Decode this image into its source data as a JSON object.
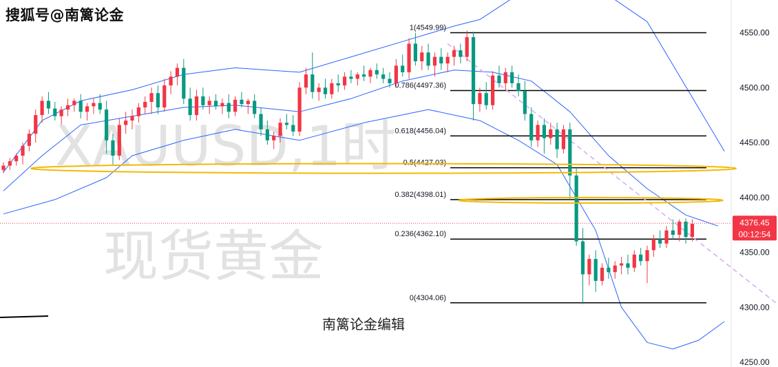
{
  "overlay": {
    "title": "搜狐号@南篱论金",
    "editor_note": "南篱论金编辑"
  },
  "watermark": {
    "line1": "XAUUSD,1时",
    "line2": "现货黄金"
  },
  "price_tag": {
    "value": "4376.45",
    "countdown": "00:12:54",
    "color": "#f23645"
  },
  "colors": {
    "up": "#f23645",
    "down": "#089981",
    "bands": "#2962ff",
    "fib": "#000000",
    "ellipse": "#f5b800",
    "trendline": "#d7a9f2"
  },
  "chart_data": {
    "type": "candlestick",
    "symbol": "XAUUSD",
    "interval": "1h",
    "y_axis": {
      "min": 4250,
      "max": 4575,
      "ticks": [
        "4550.00",
        "4500.00",
        "4450.00",
        "4400.00",
        "4350.00",
        "4300.00",
        "4250.00"
      ],
      "tick_values": [
        4550,
        4500,
        4450,
        4400,
        4350,
        4300,
        4250
      ]
    },
    "last_price": 4376.45,
    "fib_levels": [
      {
        "label": "1(4549.99)",
        "value": 4549.99
      },
      {
        "label": "0.786(4497.36)",
        "value": 4497.36
      },
      {
        "label": "0.618(4456.04)",
        "value": 4456.04
      },
      {
        "label": "0.5(4427.03)",
        "value": 4427.03
      },
      {
        "label": "0.382(4398.01)",
        "value": 4398.01
      },
      {
        "label": "0.236(4362.10)",
        "value": 4362.1
      },
      {
        "label": "0(4304.06)",
        "value": 4304.06
      }
    ],
    "highlight_ellipses": [
      4427.03,
      4398.01
    ],
    "candles": [
      [
        4425,
        4432,
        4422,
        4429
      ],
      [
        4429,
        4436,
        4425,
        4433
      ],
      [
        4433,
        4440,
        4429,
        4438
      ],
      [
        4438,
        4450,
        4430,
        4447
      ],
      [
        4447,
        4462,
        4442,
        4458
      ],
      [
        4458,
        4480,
        4450,
        4475
      ],
      [
        4475,
        4492,
        4468,
        4488
      ],
      [
        4488,
        4496,
        4476,
        4481
      ],
      [
        4481,
        4487,
        4470,
        4474
      ],
      [
        4474,
        4483,
        4466,
        4480
      ],
      [
        4480,
        4490,
        4474,
        4484
      ],
      [
        4484,
        4490,
        4478,
        4488
      ],
      [
        4488,
        4494,
        4472,
        4478
      ],
      [
        4478,
        4486,
        4470,
        4483
      ],
      [
        4483,
        4490,
        4476,
        4486
      ],
      [
        4486,
        4494,
        4476,
        4480
      ],
      [
        4480,
        4488,
        4440,
        4452
      ],
      [
        4452,
        4458,
        4430,
        4438
      ],
      [
        4438,
        4472,
        4434,
        4466
      ],
      [
        4466,
        4478,
        4458,
        4470
      ],
      [
        4470,
        4480,
        4462,
        4474
      ],
      [
        4474,
        4486,
        4468,
        4482
      ],
      [
        4482,
        4492,
        4476,
        4487
      ],
      [
        4487,
        4500,
        4476,
        4495
      ],
      [
        4495,
        4502,
        4476,
        4482
      ],
      [
        4482,
        4508,
        4478,
        4502
      ],
      [
        4502,
        4515,
        4494,
        4510
      ],
      [
        4510,
        4522,
        4502,
        4518
      ],
      [
        4518,
        4526,
        4485,
        4490
      ],
      [
        4490,
        4500,
        4470,
        4475
      ],
      [
        4475,
        4498,
        4470,
        4492
      ],
      [
        4492,
        4500,
        4480,
        4484
      ],
      [
        4484,
        4492,
        4476,
        4488
      ],
      [
        4488,
        4494,
        4480,
        4483
      ],
      [
        4483,
        4490,
        4476,
        4486
      ],
      [
        4486,
        4494,
        4472,
        4478
      ],
      [
        4478,
        4492,
        4474,
        4489
      ],
      [
        4489,
        4496,
        4482,
        4485
      ],
      [
        4485,
        4490,
        4476,
        4488
      ],
      [
        4488,
        4494,
        4472,
        4476
      ],
      [
        4476,
        4482,
        4456,
        4462
      ],
      [
        4462,
        4470,
        4448,
        4452
      ],
      [
        4452,
        4460,
        4444,
        4456
      ],
      [
        4456,
        4472,
        4450,
        4468
      ],
      [
        4468,
        4476,
        4462,
        4466
      ],
      [
        4466,
        4475,
        4456,
        4460
      ],
      [
        4460,
        4505,
        4456,
        4500
      ],
      [
        4500,
        4518,
        4494,
        4512
      ],
      [
        4512,
        4532,
        4490,
        4496
      ],
      [
        4496,
        4504,
        4488,
        4500
      ],
      [
        4500,
        4508,
        4490,
        4494
      ],
      [
        4494,
        4508,
        4490,
        4504
      ],
      [
        4504,
        4512,
        4496,
        4502
      ],
      [
        4502,
        4514,
        4498,
        4510
      ],
      [
        4510,
        4516,
        4504,
        4508
      ],
      [
        4508,
        4514,
        4502,
        4512
      ],
      [
        4512,
        4520,
        4506,
        4510
      ],
      [
        4510,
        4518,
        4504,
        4516
      ],
      [
        4516,
        4522,
        4508,
        4512
      ],
      [
        4512,
        4518,
        4504,
        4508
      ],
      [
        4508,
        4514,
        4500,
        4504
      ],
      [
        4504,
        4526,
        4500,
        4520
      ],
      [
        4520,
        4530,
        4510,
        4514
      ],
      [
        4514,
        4545,
        4508,
        4540
      ],
      [
        4540,
        4550,
        4520,
        4524
      ],
      [
        4524,
        4538,
        4516,
        4532
      ],
      [
        4532,
        4540,
        4516,
        4520
      ],
      [
        4520,
        4532,
        4510,
        4528
      ],
      [
        4528,
        4536,
        4516,
        4522
      ],
      [
        4522,
        4532,
        4514,
        4528
      ],
      [
        4528,
        4538,
        4520,
        4534
      ],
      [
        4534,
        4540,
        4522,
        4528
      ],
      [
        4528,
        4552,
        4524,
        4546
      ],
      [
        4546,
        4551,
        4470,
        4485
      ],
      [
        4485,
        4500,
        4478,
        4495
      ],
      [
        4495,
        4505,
        4480,
        4484
      ],
      [
        4484,
        4515,
        4480,
        4511
      ],
      [
        4511,
        4520,
        4500,
        4504
      ],
      [
        4504,
        4518,
        4498,
        4514
      ],
      [
        4514,
        4520,
        4500,
        4504
      ],
      [
        4504,
        4512,
        4492,
        4497
      ],
      [
        4497,
        4506,
        4470,
        4476
      ],
      [
        4476,
        4482,
        4446,
        4452
      ],
      [
        4452,
        4470,
        4446,
        4466
      ],
      [
        4466,
        4472,
        4440,
        4454
      ],
      [
        4454,
        4468,
        4448,
        4462
      ],
      [
        4462,
        4468,
        4436,
        4444
      ],
      [
        4444,
        4466,
        4440,
        4462
      ],
      [
        4462,
        4468,
        4398,
        4420
      ],
      [
        4420,
        4428,
        4356,
        4360
      ],
      [
        4360,
        4372,
        4303,
        4330
      ],
      [
        4330,
        4348,
        4320,
        4344
      ],
      [
        4344,
        4352,
        4314,
        4324
      ],
      [
        4324,
        4340,
        4320,
        4336
      ],
      [
        4336,
        4345,
        4326,
        4332
      ],
      [
        4332,
        4342,
        4326,
        4338
      ],
      [
        4338,
        4346,
        4330,
        4340
      ],
      [
        4340,
        4348,
        4330,
        4336
      ],
      [
        4336,
        4352,
        4332,
        4348
      ],
      [
        4348,
        4354,
        4338,
        4342
      ],
      [
        4342,
        4356,
        4322,
        4352
      ],
      [
        4352,
        4366,
        4346,
        4362
      ],
      [
        4362,
        4370,
        4354,
        4358
      ],
      [
        4358,
        4374,
        4354,
        4370
      ],
      [
        4370,
        4380,
        4362,
        4366
      ],
      [
        4366,
        4380,
        4360,
        4378
      ],
      [
        4378,
        4381,
        4358,
        4364
      ],
      [
        4364,
        4380,
        4360,
        4376
      ]
    ],
    "bollinger": {
      "upper_points": [
        [
          0,
          4423
        ],
        [
          6,
          4470
        ],
        [
          12,
          4488
        ],
        [
          20,
          4498
        ],
        [
          28,
          4512
        ],
        [
          36,
          4518
        ],
        [
          46,
          4514
        ],
        [
          54,
          4528
        ],
        [
          62,
          4542
        ],
        [
          70,
          4556
        ],
        [
          74,
          4562
        ],
        [
          80,
          4585
        ],
        [
          90,
          4600
        ],
        [
          100,
          4560
        ],
        [
          112,
          4442
        ]
      ],
      "middle_points": [
        [
          0,
          4406
        ],
        [
          6,
          4438
        ],
        [
          12,
          4466
        ],
        [
          20,
          4474
        ],
        [
          28,
          4482
        ],
        [
          36,
          4484
        ],
        [
          46,
          4478
        ],
        [
          54,
          4490
        ],
        [
          62,
          4506
        ],
        [
          70,
          4516
        ],
        [
          76,
          4514
        ],
        [
          82,
          4506
        ],
        [
          88,
          4478
        ],
        [
          94,
          4438
        ],
        [
          100,
          4408
        ],
        [
          106,
          4384
        ],
        [
          111,
          4374
        ]
      ],
      "lower_points": [
        [
          0,
          4385
        ],
        [
          8,
          4398
        ],
        [
          16,
          4418
        ],
        [
          20,
          4438
        ],
        [
          28,
          4452
        ],
        [
          36,
          4462
        ],
        [
          46,
          4452
        ],
        [
          56,
          4468
        ],
        [
          66,
          4480
        ],
        [
          74,
          4470
        ],
        [
          80,
          4452
        ],
        [
          86,
          4430
        ],
        [
          92,
          4370
        ],
        [
          96,
          4300
        ],
        [
          100,
          4268
        ],
        [
          104,
          4262
        ],
        [
          108,
          4270
        ],
        [
          112,
          4287
        ]
      ]
    },
    "trendline": {
      "from": [
        69,
        4540
      ],
      "to": [
        120,
        4304
      ]
    },
    "stray_line": {
      "x1": 0,
      "x2": 70,
      "y": 459
    }
  }
}
